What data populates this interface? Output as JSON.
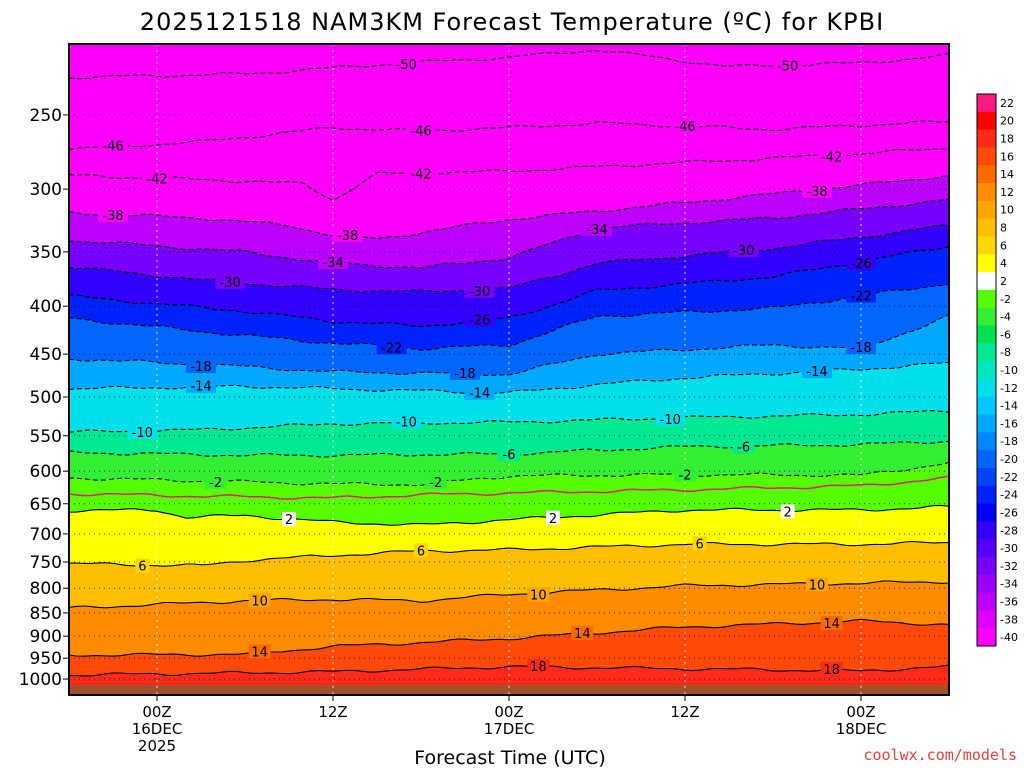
{
  "page": {
    "title": "2025121518 NAM3KM Forecast Temperature (ºC) for KPBI",
    "credit": "coolwx.com/models"
  },
  "chart_data": {
    "type": "heatmap",
    "title": "2025121518 NAM3KM Forecast Temperature (ºC) for KPBI",
    "xlabel": "Forecast Time (UTC)",
    "ylabel": "",
    "x_range_hours": [
      -6,
      54
    ],
    "y_range_hpa": [
      210,
      1040
    ],
    "y_scale": "log",
    "y_ticks": [
      250,
      300,
      350,
      400,
      450,
      500,
      550,
      600,
      650,
      700,
      750,
      800,
      850,
      900,
      950,
      1000
    ],
    "x_ticks": [
      {
        "hour": 0,
        "lines": [
          "00Z",
          "16DEC",
          "2025"
        ]
      },
      {
        "hour": 12,
        "lines": [
          "12Z"
        ]
      },
      {
        "hour": 24,
        "lines": [
          "00Z",
          "17DEC"
        ]
      },
      {
        "hour": 36,
        "lines": [
          "12Z"
        ]
      },
      {
        "hour": 48,
        "lines": [
          "00Z",
          "18DEC"
        ]
      }
    ],
    "colorbar": {
      "levels": [
        22,
        20,
        18,
        16,
        14,
        12,
        10,
        8,
        6,
        4,
        2,
        -2,
        -4,
        -6,
        -8,
        -10,
        -12,
        -14,
        -16,
        -18,
        -20,
        -22,
        -24,
        -26,
        -28,
        -30,
        -32,
        -34,
        -36,
        -38,
        -40
      ],
      "colors": [
        "#ff1a80",
        "#ff0000",
        "#ff2a1a",
        "#ff4a0a",
        "#ff6a00",
        "#ff8c00",
        "#ffa500",
        "#ffbf00",
        "#ffd700",
        "#ffff00",
        "#ffffff",
        "#55ff00",
        "#33ee33",
        "#00e050",
        "#00e890",
        "#00e8c0",
        "#00e0e8",
        "#00c8ff",
        "#00a8ff",
        "#0088ff",
        "#0066ff",
        "#0044ff",
        "#0022ff",
        "#0000ff",
        "#3300ff",
        "#5500ff",
        "#7700ff",
        "#9900ff",
        "#bb00ff",
        "#dd00ff",
        "#ff00ff"
      ],
      "position": "right"
    },
    "contours": [
      {
        "value": -50,
        "label": "-50",
        "profile": [
          [
            -6,
            228
          ],
          [
            6,
            226
          ],
          [
            15,
            221
          ],
          [
            24,
            217
          ],
          [
            30,
            213
          ],
          [
            39,
            222
          ],
          [
            48,
            220
          ],
          [
            54,
            216
          ]
        ],
        "labels_at": [
          17,
          43
        ]
      },
      {
        "value": -46,
        "label": "-46",
        "profile": [
          [
            -6,
            272
          ],
          [
            3,
            267
          ],
          [
            12,
            258
          ],
          [
            18,
            260
          ],
          [
            24,
            258
          ],
          [
            30,
            255
          ],
          [
            42,
            259
          ],
          [
            54,
            254
          ]
        ],
        "labels_at": [
          -3,
          18,
          36
        ]
      },
      {
        "value": -42,
        "label": "-42",
        "profile": [
          [
            -6,
            290
          ],
          [
            3,
            293
          ],
          [
            10,
            296
          ],
          [
            12,
            308
          ],
          [
            15,
            289
          ],
          [
            24,
            287
          ],
          [
            36,
            281
          ],
          [
            48,
            275
          ],
          [
            54,
            271
          ]
        ],
        "labels_at": [
          0,
          18,
          46
        ]
      },
      {
        "value": -38,
        "label": "-38",
        "profile": [
          [
            -6,
            318
          ],
          [
            3,
            322
          ],
          [
            9,
            328
          ],
          [
            12,
            336
          ],
          [
            15,
            339
          ],
          [
            24,
            323
          ],
          [
            36,
            310
          ],
          [
            48,
            297
          ],
          [
            54,
            290
          ]
        ],
        "labels_at": [
          -3,
          13,
          45
        ]
      },
      {
        "value": -34,
        "label": "-34",
        "profile": [
          [
            -6,
            340
          ],
          [
            6,
            350
          ],
          [
            12,
            360
          ],
          [
            18,
            364
          ],
          [
            24,
            355
          ],
          [
            30,
            330
          ],
          [
            42,
            322
          ],
          [
            54,
            308
          ]
        ],
        "labels_at": [
          12,
          30
        ]
      },
      {
        "value": -30,
        "label": "-30",
        "profile": [
          [
            -6,
            363
          ],
          [
            3,
            375
          ],
          [
            12,
            384
          ],
          [
            18,
            386
          ],
          [
            24,
            383
          ],
          [
            30,
            360
          ],
          [
            42,
            347
          ],
          [
            54,
            328
          ]
        ],
        "labels_at": [
          5,
          22,
          40
        ]
      },
      {
        "value": -26,
        "label": "-26",
        "profile": [
          [
            -6,
            390
          ],
          [
            6,
            405
          ],
          [
            12,
            415
          ],
          [
            18,
            420
          ],
          [
            24,
            412
          ],
          [
            30,
            385
          ],
          [
            42,
            372
          ],
          [
            54,
            345
          ]
        ],
        "labels_at": [
          22,
          48
        ]
      },
      {
        "value": -22,
        "label": "-22",
        "profile": [
          [
            -6,
            412
          ],
          [
            6,
            430
          ],
          [
            12,
            438
          ],
          [
            18,
            444
          ],
          [
            24,
            440
          ],
          [
            30,
            410
          ],
          [
            42,
            402
          ],
          [
            54,
            378
          ]
        ],
        "labels_at": [
          16,
          48
        ]
      },
      {
        "value": -18,
        "label": "-18",
        "profile": [
          [
            -6,
            455
          ],
          [
            6,
            464
          ],
          [
            12,
            470
          ],
          [
            24,
            473
          ],
          [
            30,
            450
          ],
          [
            42,
            440
          ],
          [
            48,
            444
          ],
          [
            54,
            410
          ]
        ],
        "labels_at": [
          3,
          21,
          48
        ]
      },
      {
        "value": -14,
        "label": "-14",
        "profile": [
          [
            -6,
            490
          ],
          [
            6,
            487
          ],
          [
            12,
            490
          ],
          [
            24,
            495
          ],
          [
            30,
            485
          ],
          [
            36,
            477
          ],
          [
            48,
            467
          ],
          [
            54,
            460
          ]
        ],
        "labels_at": [
          3,
          22,
          45
        ]
      },
      {
        "value": -10,
        "label": "-10",
        "profile": [
          [
            -6,
            545
          ],
          [
            3,
            542
          ],
          [
            12,
            534
          ],
          [
            24,
            532
          ],
          [
            36,
            526
          ],
          [
            48,
            522
          ],
          [
            54,
            517
          ]
        ],
        "labels_at": [
          -1,
          17,
          35
        ]
      },
      {
        "value": -6,
        "label": "-6",
        "profile": [
          [
            -6,
            573
          ],
          [
            6,
            577
          ],
          [
            12,
            577
          ],
          [
            24,
            575
          ],
          [
            36,
            565
          ],
          [
            48,
            562
          ],
          [
            54,
            557
          ]
        ],
        "labels_at": [
          24,
          40
        ]
      },
      {
        "value": -2,
        "label": "-2",
        "profile": [
          [
            -6,
            610
          ],
          [
            6,
            616
          ],
          [
            12,
            619
          ],
          [
            18,
            620
          ],
          [
            24,
            607
          ],
          [
            36,
            605
          ],
          [
            48,
            606
          ],
          [
            54,
            588
          ]
        ],
        "labels_at": [
          4,
          19,
          36
        ]
      },
      {
        "value": 0,
        "label": "",
        "profile": [
          [
            -6,
            634
          ],
          [
            3,
            638
          ],
          [
            12,
            641
          ],
          [
            18,
            636
          ],
          [
            24,
            633
          ],
          [
            36,
            628
          ],
          [
            48,
            622
          ],
          [
            54,
            610
          ]
        ],
        "labels_at": []
      },
      {
        "value": 2,
        "label": "2",
        "profile": [
          [
            -6,
            661
          ],
          [
            0,
            660
          ],
          [
            2,
            672
          ],
          [
            6,
            669
          ],
          [
            12,
            680
          ],
          [
            18,
            685
          ],
          [
            24,
            676
          ],
          [
            36,
            660
          ],
          [
            48,
            660
          ],
          [
            54,
            655
          ]
        ],
        "labels_at": [
          9,
          27,
          43
        ]
      },
      {
        "value": 6,
        "label": "6",
        "profile": [
          [
            -6,
            753
          ],
          [
            3,
            757
          ],
          [
            6,
            747
          ],
          [
            12,
            738
          ],
          [
            18,
            730
          ],
          [
            24,
            728
          ],
          [
            36,
            718
          ],
          [
            48,
            718
          ],
          [
            54,
            715
          ]
        ],
        "labels_at": [
          -1,
          18,
          37
        ]
      },
      {
        "value": 10,
        "label": "10",
        "profile": [
          [
            -6,
            840
          ],
          [
            6,
            825
          ],
          [
            12,
            822
          ],
          [
            18,
            825
          ],
          [
            24,
            812
          ],
          [
            36,
            795
          ],
          [
            48,
            790
          ],
          [
            54,
            787
          ]
        ],
        "labels_at": [
          7,
          26,
          45
        ]
      },
      {
        "value": 14,
        "label": "14",
        "profile": [
          [
            -6,
            943
          ],
          [
            6,
            941
          ],
          [
            12,
            923
          ],
          [
            24,
            905
          ],
          [
            36,
            880
          ],
          [
            48,
            867
          ],
          [
            54,
            875
          ]
        ],
        "labels_at": [
          7,
          29,
          46
        ]
      },
      {
        "value": 18,
        "label": "18",
        "profile": [
          [
            -6,
            990
          ],
          [
            6,
            985
          ],
          [
            12,
            982
          ],
          [
            24,
            970
          ],
          [
            36,
            975
          ],
          [
            48,
            980
          ],
          [
            54,
            970
          ]
        ],
        "labels_at": [
          26,
          46
        ]
      }
    ]
  }
}
